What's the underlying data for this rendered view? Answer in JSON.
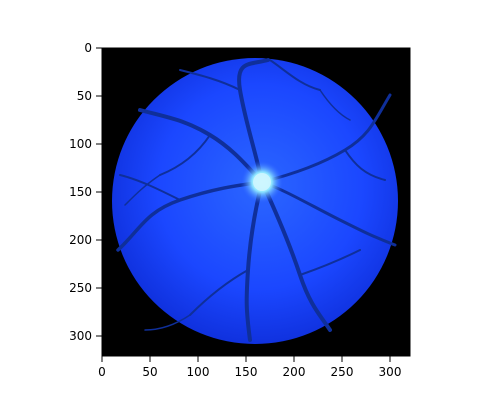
{
  "image": {
    "subject": "retina-fundus",
    "colors": {
      "background": "#000000",
      "fundus": "#1f4fff",
      "vessel": "#0f2f9a",
      "optic_disc": "#b6f1ff"
    },
    "x_axis": {
      "range": [
        0,
        320
      ],
      "ticks": [
        0,
        50,
        100,
        150,
        200,
        250,
        300
      ],
      "tick_labels": [
        "0",
        "50",
        "100",
        "150",
        "200",
        "250",
        "300"
      ]
    },
    "y_axis": {
      "range": [
        0,
        320
      ],
      "ticks": [
        0,
        50,
        100,
        150,
        200,
        250,
        300
      ],
      "tick_labels": [
        "0",
        "50",
        "100",
        "150",
        "200",
        "250",
        "300"
      ]
    }
  }
}
